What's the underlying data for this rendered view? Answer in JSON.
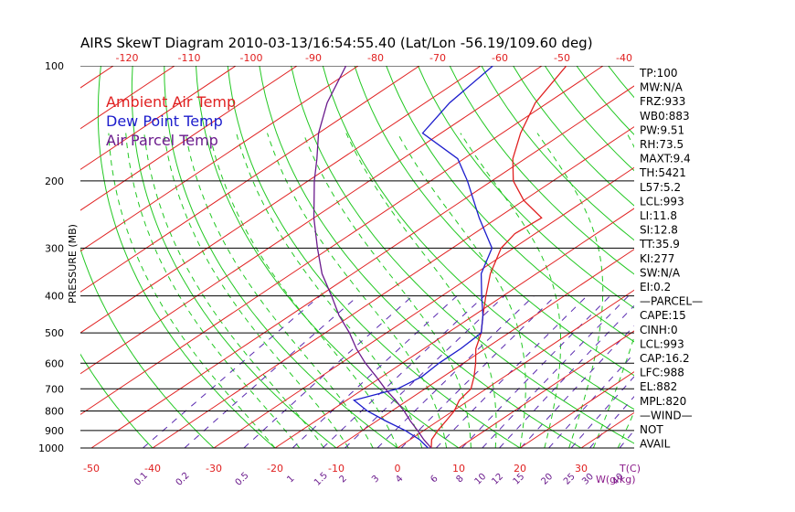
{
  "chart_data": {
    "type": "skewt",
    "title": "AIRS SkewT Diagram 2010-03-13/16:54:55.40 (Lat/Lon -56.19/109.60 deg)",
    "ylabel": "PRESSURE (MB)",
    "x_unit_label": "T(C)",
    "mixing_ratio_unit_label": "W(g/kg)",
    "pressure_levels": [
      100,
      200,
      300,
      400,
      500,
      600,
      700,
      800,
      900,
      1000
    ],
    "top_temp_ticks": [
      -120,
      -110,
      -100,
      -90,
      -80,
      -70,
      -60,
      -50,
      -40
    ],
    "bottom_temp_ticks": [
      -50,
      -40,
      -30,
      -20,
      -10,
      0,
      10,
      20,
      30
    ],
    "mixing_ratios": [
      0.1,
      0.2,
      0.5,
      1,
      1.5,
      2,
      3,
      4,
      6,
      8,
      10,
      12,
      15,
      20,
      25,
      30,
      40
    ],
    "legend": [
      {
        "label": "Ambient Air Temp",
        "color": "#e02020"
      },
      {
        "label": "Dew Point Temp",
        "color": "#1c1ccc"
      },
      {
        "label": "Air Parcel Temp",
        "color": "#6a1a8c"
      }
    ],
    "colors": {
      "isotherm": "#e02020",
      "dry_adiabat": "#22c822",
      "moist_adiabat": "#22c822",
      "mixing_ratio": "#5a2ab0",
      "isobar": "#000000"
    },
    "series": [
      {
        "name": "Ambient Air Temp",
        "points": [
          [
            1000,
            5.5
          ],
          [
            950,
            3.5
          ],
          [
            900,
            2.3
          ],
          [
            850,
            1.3
          ],
          [
            800,
            0.2
          ],
          [
            750,
            -1.6
          ],
          [
            700,
            -2.5
          ],
          [
            650,
            -5.0
          ],
          [
            600,
            -8.0
          ],
          [
            550,
            -11.5
          ],
          [
            500,
            -14.5
          ],
          [
            450,
            -18.5
          ],
          [
            400,
            -22.8
          ],
          [
            350,
            -27.5
          ],
          [
            300,
            -32.0
          ],
          [
            275,
            -33.3
          ],
          [
            250,
            -32.8
          ],
          [
            225,
            -40.0
          ],
          [
            200,
            -46.5
          ],
          [
            175,
            -52.0
          ],
          [
            150,
            -57.0
          ],
          [
            125,
            -62.0
          ],
          [
            100,
            -66.0
          ]
        ]
      },
      {
        "name": "Dew Point Temp",
        "points": [
          [
            1000,
            5.0
          ],
          [
            950,
            1.5
          ],
          [
            900,
            -3.0
          ],
          [
            850,
            -8.5
          ],
          [
            800,
            -14.0
          ],
          [
            750,
            -18.8
          ],
          [
            700,
            -14.5
          ],
          [
            650,
            -13.5
          ],
          [
            600,
            -14.0
          ],
          [
            550,
            -14.0
          ],
          [
            500,
            -14.5
          ],
          [
            450,
            -18.5
          ],
          [
            400,
            -23.5
          ],
          [
            350,
            -29.0
          ],
          [
            300,
            -33.5
          ],
          [
            250,
            -43.0
          ],
          [
            200,
            -54.0
          ],
          [
            175,
            -61.0
          ],
          [
            150,
            -73.0
          ],
          [
            125,
            -76.0
          ],
          [
            100,
            -78.0
          ]
        ]
      },
      {
        "name": "Air Parcel Temp",
        "points": [
          [
            1000,
            5.5
          ],
          [
            950,
            2.2
          ],
          [
            900,
            -1.0
          ],
          [
            850,
            -4.5
          ],
          [
            800,
            -8.0
          ],
          [
            750,
            -12.0
          ],
          [
            700,
            -16.5
          ],
          [
            650,
            -21.0
          ],
          [
            600,
            -26.0
          ],
          [
            550,
            -31.0
          ],
          [
            500,
            -36.0
          ],
          [
            450,
            -42.0
          ],
          [
            400,
            -48.0
          ],
          [
            350,
            -55.0
          ],
          [
            300,
            -62.0
          ],
          [
            250,
            -70.0
          ],
          [
            200,
            -79.0
          ],
          [
            175,
            -84.0
          ],
          [
            150,
            -90.0
          ],
          [
            125,
            -96.0
          ],
          [
            100,
            -102.0
          ]
        ]
      }
    ],
    "indices": [
      "TP:100",
      "MW:N/A",
      "FRZ:933",
      "WB0:883",
      "PW:9.51",
      "RH:73.5",
      "MAXT:9.4",
      "TH:5421",
      "L57:5.2",
      "LCL:993",
      "LI:11.8",
      "SI:12.8",
      "TT:35.9",
      "KI:277",
      "SW:N/A",
      "EI:0.2",
      "—PARCEL—",
      "CAPE:15",
      "CINH:0",
      "LCL:993",
      "CAP:16.2",
      "LFC:988",
      "EL:882",
      "MPL:820",
      "—WIND—",
      "NOT",
      "AVAIL"
    ]
  }
}
